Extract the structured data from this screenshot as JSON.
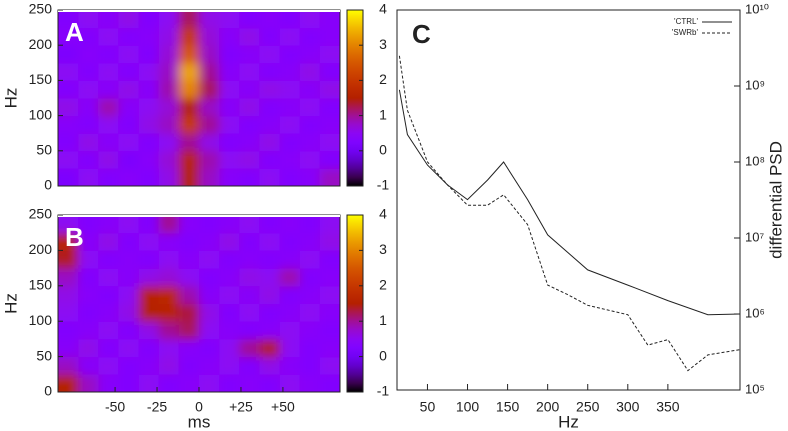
{
  "chart_data": [
    {
      "type": "heatmap",
      "label": "A",
      "ylabel": "Hz",
      "colormap": "gnuplot",
      "x": [
        -78,
        -66,
        -54,
        -42,
        -30,
        -18,
        -6,
        6,
        18,
        30,
        42,
        54,
        66,
        78
      ],
      "y": [
        12.5,
        37.5,
        62.5,
        87.5,
        112.5,
        137.5,
        162.5,
        187.5,
        212.5,
        237.5
      ],
      "z": [
        [
          0.2,
          0.5,
          0.3,
          0.4,
          0.3,
          0.6,
          1.5,
          0.8,
          0.4,
          0.3,
          0.5,
          0.3,
          0.4,
          0.8
        ],
        [
          0.5,
          0.3,
          0.6,
          0.2,
          0.4,
          0.7,
          1.6,
          0.9,
          0.5,
          0.6,
          0.3,
          0.4,
          0.5,
          0.3
        ],
        [
          0.3,
          0.6,
          0.4,
          0.5,
          0.3,
          0.5,
          1.0,
          0.6,
          0.3,
          0.4,
          0.6,
          0.3,
          0.4,
          0.5
        ],
        [
          0.4,
          0.3,
          0.5,
          0.3,
          0.6,
          0.8,
          2.0,
          1.0,
          0.5,
          0.3,
          0.4,
          0.5,
          0.3,
          0.4
        ],
        [
          0.6,
          0.4,
          0.9,
          0.4,
          0.5,
          0.7,
          1.5,
          0.8,
          0.4,
          0.6,
          0.3,
          0.4,
          0.5,
          0.3
        ],
        [
          0.3,
          0.5,
          0.4,
          0.6,
          0.4,
          0.9,
          3.0,
          1.2,
          0.5,
          0.4,
          0.6,
          0.5,
          0.4,
          0.6
        ],
        [
          0.5,
          0.3,
          0.5,
          0.3,
          0.5,
          0.8,
          3.3,
          1.0,
          0.4,
          0.5,
          0.3,
          0.4,
          0.6,
          0.3
        ],
        [
          0.2,
          0.4,
          0.3,
          0.5,
          0.3,
          0.7,
          2.5,
          0.8,
          0.3,
          0.4,
          0.5,
          0.3,
          0.4,
          0.5
        ],
        [
          0.4,
          0.3,
          0.5,
          0.3,
          0.4,
          0.6,
          2.0,
          0.7,
          0.4,
          0.6,
          0.3,
          0.5,
          0.3,
          0.4
        ],
        [
          0.3,
          0.5,
          0.4,
          0.6,
          0.3,
          0.5,
          1.2,
          0.6,
          0.5,
          0.3,
          0.4,
          0.3,
          0.5,
          0.4
        ]
      ],
      "xlim": [
        -84,
        84
      ],
      "ylim": [
        0,
        250
      ],
      "yticks": [
        0,
        50,
        100,
        150,
        200,
        250
      ],
      "zlim": [
        -1,
        4
      ],
      "zticks": [
        -1,
        0,
        1,
        2,
        3,
        4
      ]
    },
    {
      "type": "heatmap",
      "label": "B",
      "ylabel": "Hz",
      "xlabel": "ms",
      "colormap": "gnuplot",
      "x": [
        -78,
        -66,
        -54,
        -42,
        -30,
        -18,
        -6,
        6,
        18,
        30,
        42,
        54,
        66,
        78
      ],
      "y": [
        12.5,
        37.5,
        62.5,
        87.5,
        112.5,
        137.5,
        162.5,
        187.5,
        212.5,
        237.5
      ],
      "z": [
        [
          1.5,
          0.8,
          0.4,
          0.3,
          0.5,
          0.3,
          0.4,
          0.5,
          0.3,
          0.4,
          0.3,
          0.5,
          0.4,
          0.3
        ],
        [
          0.8,
          0.4,
          0.5,
          0.3,
          0.4,
          0.6,
          0.3,
          0.4,
          0.5,
          0.3,
          0.6,
          0.4,
          0.3,
          0.5
        ],
        [
          0.4,
          0.6,
          0.3,
          0.5,
          0.3,
          0.5,
          0.4,
          0.3,
          0.5,
          1.0,
          1.4,
          0.5,
          0.3,
          0.4
        ],
        [
          0.3,
          0.4,
          0.5,
          0.3,
          0.6,
          1.0,
          1.2,
          0.5,
          0.4,
          0.3,
          0.4,
          0.5,
          0.4,
          0.3
        ],
        [
          0.5,
          0.3,
          0.4,
          0.6,
          1.5,
          1.6,
          1.3,
          0.6,
          0.3,
          0.5,
          0.3,
          0.4,
          0.5,
          0.4
        ],
        [
          0.6,
          0.4,
          0.3,
          0.5,
          1.6,
          1.7,
          0.9,
          0.4,
          0.5,
          0.4,
          0.6,
          0.3,
          0.4,
          0.5
        ],
        [
          0.8,
          0.3,
          0.5,
          0.4,
          0.6,
          0.7,
          0.5,
          0.3,
          0.4,
          0.6,
          0.5,
          0.9,
          0.3,
          0.4
        ],
        [
          1.4,
          0.5,
          0.3,
          0.4,
          0.3,
          0.5,
          0.4,
          0.5,
          0.3,
          0.4,
          0.3,
          0.4,
          0.5,
          0.3
        ],
        [
          1.6,
          0.4,
          0.6,
          0.3,
          0.5,
          0.4,
          0.3,
          0.4,
          0.6,
          0.3,
          0.5,
          0.3,
          0.4,
          0.6
        ],
        [
          0.5,
          0.3,
          0.4,
          0.5,
          0.3,
          1.0,
          0.4,
          0.3,
          0.4,
          0.5,
          0.3,
          0.4,
          0.3,
          0.5
        ]
      ],
      "xlim": [
        -84,
        84
      ],
      "ylim": [
        0,
        250
      ],
      "xticks": [
        -50,
        -25,
        0,
        {
          "value": 25,
          "label": "+25"
        },
        {
          "value": 50,
          "label": "+50"
        }
      ],
      "yticks": [
        0,
        50,
        100,
        150,
        200,
        250
      ],
      "zlim": [
        -1,
        4
      ],
      "zticks": [
        -1,
        0,
        1,
        2,
        3,
        4
      ]
    },
    {
      "type": "line",
      "label": "C",
      "xlabel": "Hz",
      "ylabel": "differential PSD",
      "log_y": true,
      "legend": "top-right",
      "xlim": [
        12,
        440
      ],
      "ylim": [
        100000,
        10000000000
      ],
      "xticks": [
        50,
        100,
        150,
        200,
        250,
        300,
        350
      ],
      "yticks": [
        {
          "value": 100000,
          "label": "10⁵"
        },
        {
          "value": 1000000,
          "label": "10⁶"
        },
        {
          "value": 10000000,
          "label": "10⁷"
        },
        {
          "value": 100000000,
          "label": "10⁸"
        },
        {
          "value": 1000000000,
          "label": "10⁹"
        },
        {
          "value": 10000000000,
          "label": "10¹⁰"
        }
      ],
      "series": [
        {
          "name": "'CTRL'",
          "color": "#222222",
          "dash": "solid",
          "x": [
            15,
            25,
            50,
            75,
            100,
            125,
            145,
            175,
            200,
            250,
            300,
            350,
            400,
            440
          ],
          "values": [
            890000000,
            230000000,
            91000000,
            50000000,
            32000000,
            58000000,
            100000000,
            32000000,
            11000000,
            3800000,
            2400000,
            1500000,
            980000,
            1000000
          ]
        },
        {
          "name": "'SWRb'",
          "color": "#222222",
          "dash": "dashed",
          "x": [
            15,
            25,
            50,
            75,
            100,
            125,
            145,
            175,
            200,
            225,
            250,
            300,
            325,
            350,
            375,
            400,
            440
          ],
          "values": [
            2500000000,
            480000000,
            100000000,
            50000000,
            27000000,
            27000000,
            37000000,
            15000000,
            2400000,
            1800000,
            1300000,
            980000,
            390000,
            460000,
            180000,
            290000,
            340000
          ]
        }
      ]
    }
  ]
}
